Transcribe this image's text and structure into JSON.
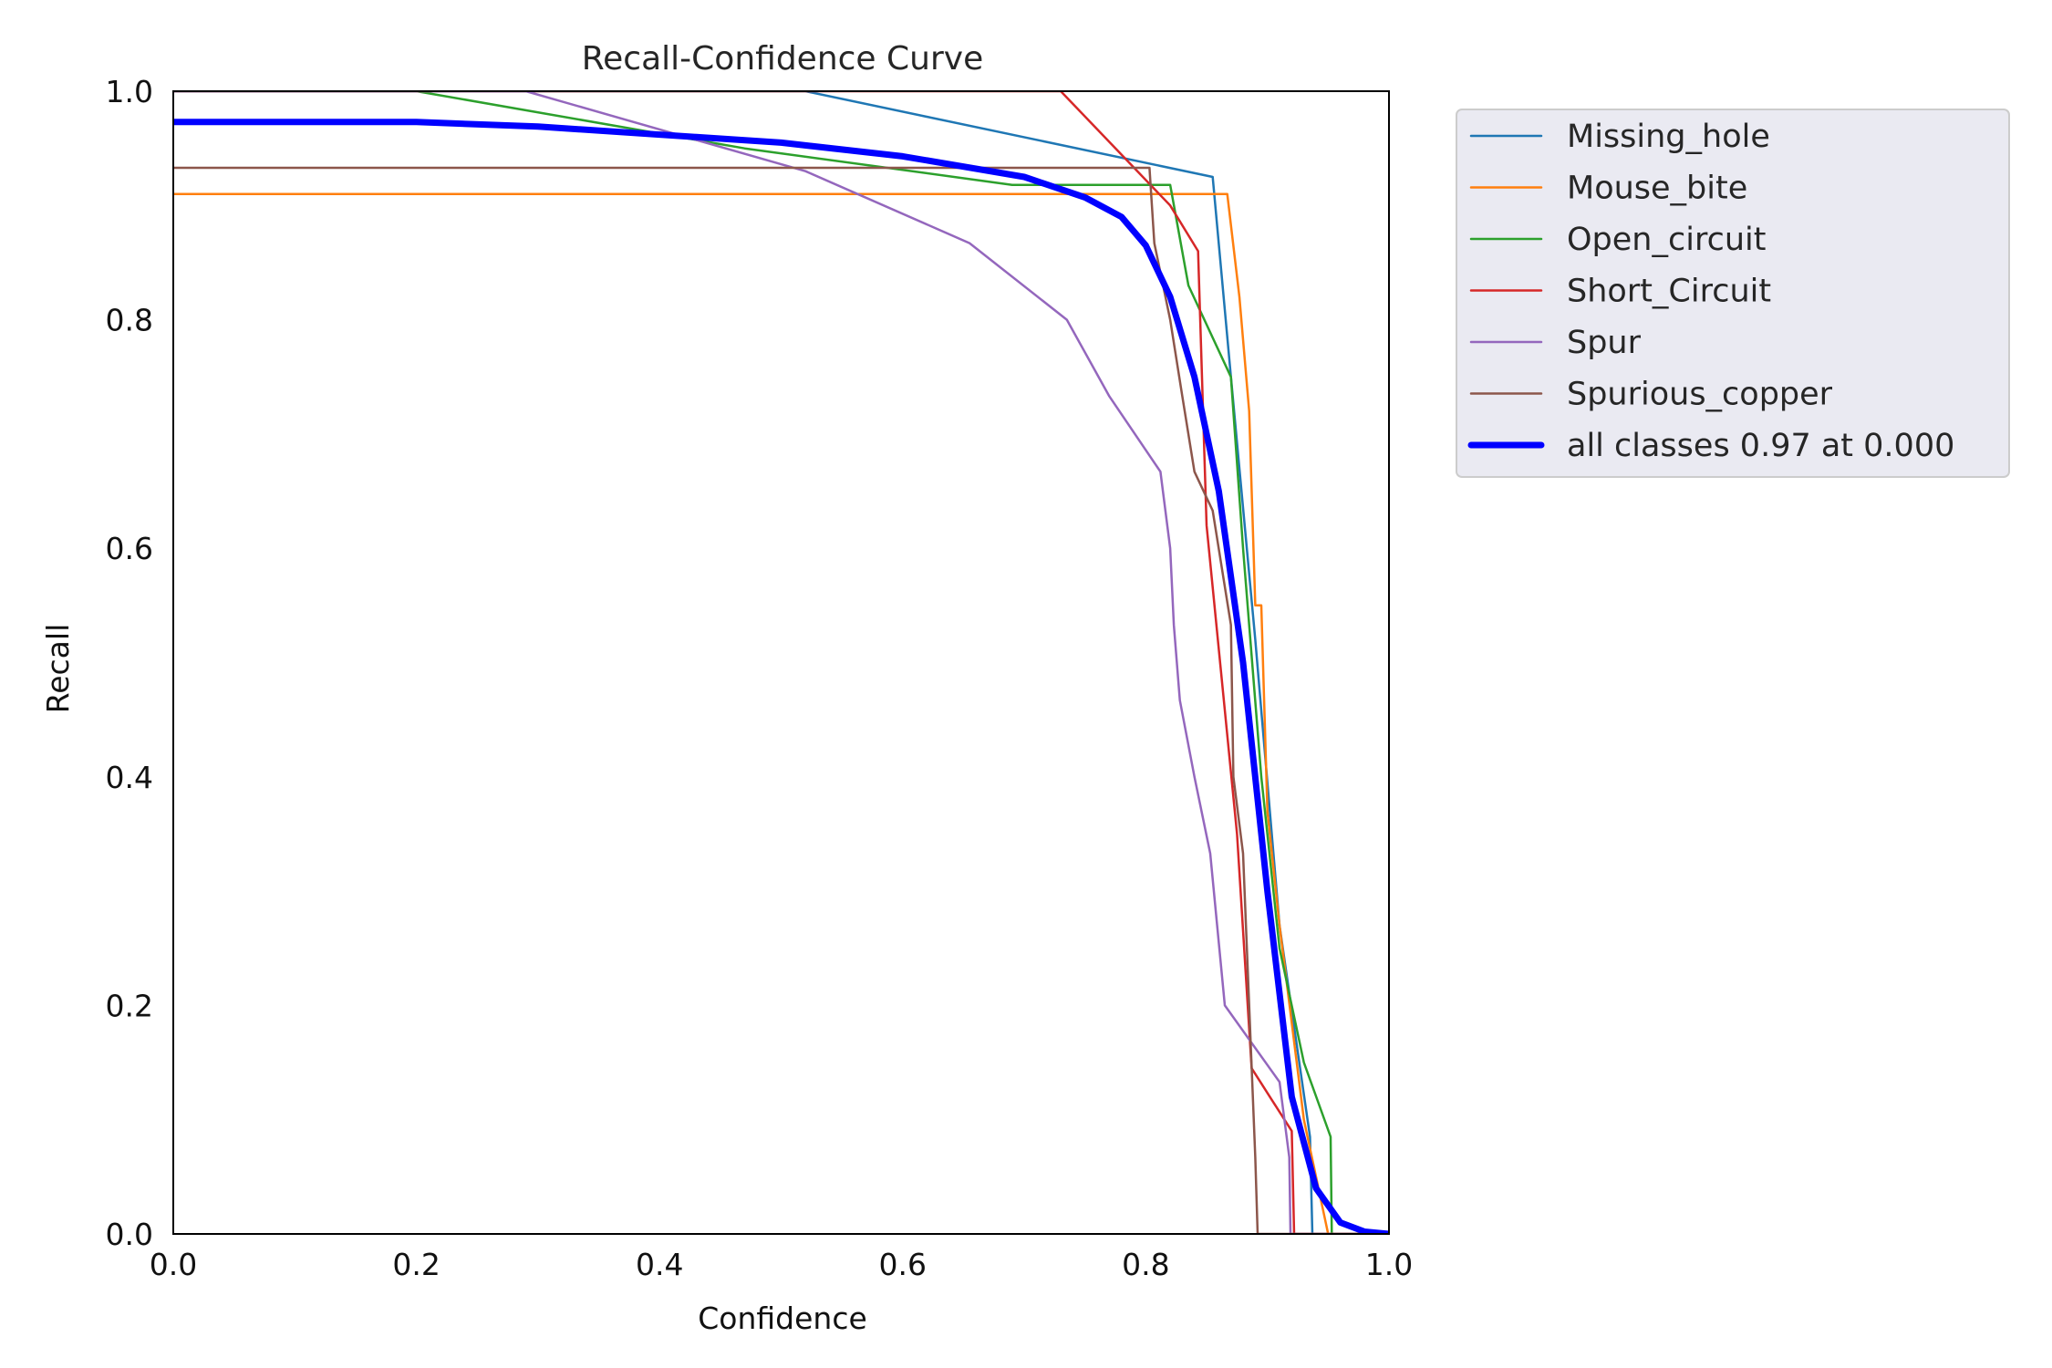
{
  "chart_data": {
    "type": "line",
    "title": "Recall-Confidence Curve",
    "xlabel": "Confidence",
    "ylabel": "Recall",
    "xlim": [
      0,
      1
    ],
    "ylim": [
      0,
      1
    ],
    "xticks": [
      "0.0",
      "0.2",
      "0.4",
      "0.6",
      "0.8",
      "1.0"
    ],
    "yticks": [
      "0.0",
      "0.2",
      "0.4",
      "0.6",
      "0.8",
      "1.0"
    ],
    "grid": false,
    "legend_position": "outside-top-right",
    "series": [
      {
        "name": "Missing_hole",
        "color": "#1f77b4",
        "points": [
          [
            0,
            1.0
          ],
          [
            0.52,
            1.0
          ],
          [
            0.855,
            0.925
          ],
          [
            0.87,
            0.75
          ],
          [
            0.89,
            0.52
          ],
          [
            0.91,
            0.27
          ],
          [
            0.935,
            0.085
          ],
          [
            0.937,
            0.0
          ],
          [
            1.0,
            0.0
          ]
        ]
      },
      {
        "name": "Mouse_bite",
        "color": "#ff7f0e",
        "points": [
          [
            0,
            0.91
          ],
          [
            0.867,
            0.91
          ],
          [
            0.877,
            0.82
          ],
          [
            0.885,
            0.72
          ],
          [
            0.89,
            0.55
          ],
          [
            0.895,
            0.55
          ],
          [
            0.9,
            0.37
          ],
          [
            0.91,
            0.27
          ],
          [
            0.93,
            0.1
          ],
          [
            0.95,
            0.0
          ],
          [
            1.0,
            0.0
          ]
        ]
      },
      {
        "name": "Open_circuit",
        "color": "#2ca02c",
        "points": [
          [
            0,
            1.0
          ],
          [
            0.2,
            1.0
          ],
          [
            0.47,
            0.95
          ],
          [
            0.69,
            0.918
          ],
          [
            0.82,
            0.918
          ],
          [
            0.835,
            0.83
          ],
          [
            0.87,
            0.75
          ],
          [
            0.88,
            0.6
          ],
          [
            0.895,
            0.4
          ],
          [
            0.91,
            0.25
          ],
          [
            0.93,
            0.15
          ],
          [
            0.952,
            0.085
          ],
          [
            0.953,
            0.0
          ],
          [
            1.0,
            0.0
          ]
        ]
      },
      {
        "name": "Short_Circuit",
        "color": "#d62728",
        "points": [
          [
            0,
            1.0
          ],
          [
            0.73,
            1.0
          ],
          [
            0.82,
            0.9
          ],
          [
            0.843,
            0.86
          ],
          [
            0.85,
            0.62
          ],
          [
            0.875,
            0.35
          ],
          [
            0.887,
            0.145
          ],
          [
            0.92,
            0.09
          ],
          [
            0.922,
            0.0
          ],
          [
            1.0,
            0.0
          ]
        ]
      },
      {
        "name": "Spur",
        "color": "#9467bd",
        "points": [
          [
            0,
            1.0
          ],
          [
            0.29,
            1.0
          ],
          [
            0.52,
            0.93
          ],
          [
            0.655,
            0.867
          ],
          [
            0.735,
            0.8
          ],
          [
            0.77,
            0.733
          ],
          [
            0.812,
            0.667
          ],
          [
            0.82,
            0.6
          ],
          [
            0.823,
            0.533
          ],
          [
            0.828,
            0.467
          ],
          [
            0.84,
            0.4
          ],
          [
            0.853,
            0.333
          ],
          [
            0.865,
            0.2
          ],
          [
            0.91,
            0.133
          ],
          [
            0.918,
            0.067
          ],
          [
            0.919,
            0.0
          ],
          [
            1.0,
            0.0
          ]
        ]
      },
      {
        "name": "Spurious_copper",
        "color": "#8c564b",
        "points": [
          [
            0,
            0.933
          ],
          [
            0.803,
            0.933
          ],
          [
            0.807,
            0.867
          ],
          [
            0.82,
            0.8
          ],
          [
            0.83,
            0.733
          ],
          [
            0.84,
            0.667
          ],
          [
            0.855,
            0.633
          ],
          [
            0.87,
            0.533
          ],
          [
            0.872,
            0.4
          ],
          [
            0.88,
            0.333
          ],
          [
            0.89,
            0.067
          ],
          [
            0.892,
            0.0
          ],
          [
            1.0,
            0.0
          ]
        ]
      },
      {
        "name": "all classes 0.97 at 0.000",
        "color": "#0000ff",
        "width": 7,
        "points": [
          [
            0,
            0.973
          ],
          [
            0.2,
            0.973
          ],
          [
            0.3,
            0.969
          ],
          [
            0.4,
            0.962
          ],
          [
            0.5,
            0.955
          ],
          [
            0.6,
            0.943
          ],
          [
            0.7,
            0.925
          ],
          [
            0.75,
            0.907
          ],
          [
            0.78,
            0.89
          ],
          [
            0.8,
            0.865
          ],
          [
            0.82,
            0.82
          ],
          [
            0.84,
            0.75
          ],
          [
            0.86,
            0.65
          ],
          [
            0.88,
            0.5
          ],
          [
            0.9,
            0.3
          ],
          [
            0.92,
            0.12
          ],
          [
            0.94,
            0.04
          ],
          [
            0.96,
            0.01
          ],
          [
            0.98,
            0.002
          ],
          [
            1.0,
            0.0
          ]
        ]
      }
    ]
  }
}
